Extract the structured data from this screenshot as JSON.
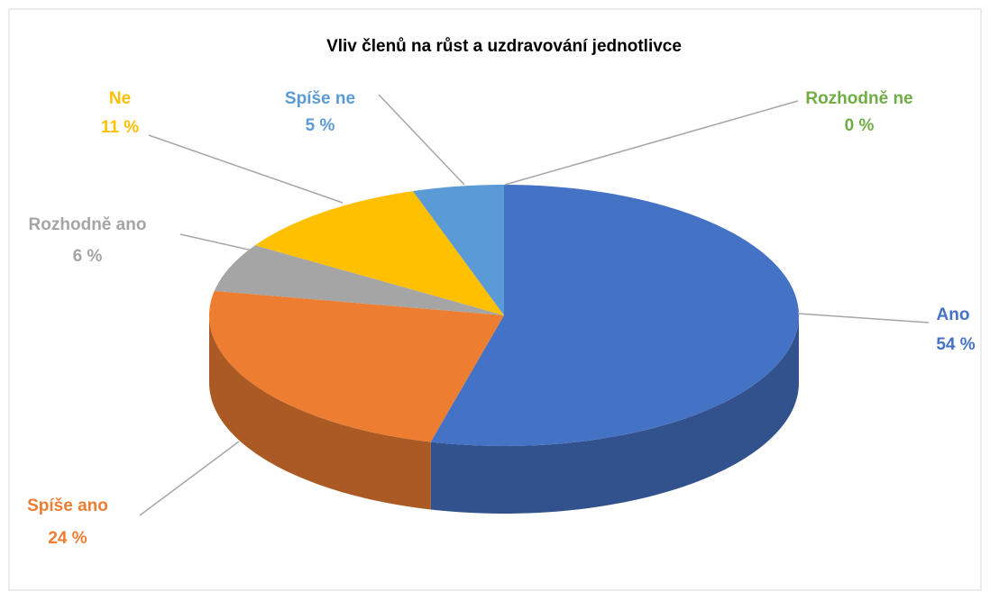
{
  "chart_data": {
    "type": "pie3d",
    "title": "Vliv členů na růst a uzdravování jednotlivce",
    "categories": [
      "Ano",
      "Spíše ano",
      "Rozhodně ano",
      "Ne",
      "Spíše ne",
      "Rozhodně ne"
    ],
    "values": [
      54,
      24,
      6,
      11,
      5,
      0
    ],
    "value_labels": [
      "54 %",
      "24 %",
      "6 %",
      "11 %",
      "5 %",
      "0 %"
    ],
    "colors": [
      "#4472c4",
      "#ed7d31",
      "#a5a5a5",
      "#ffc000",
      "#5b9bd5",
      "#70ad47"
    ]
  }
}
